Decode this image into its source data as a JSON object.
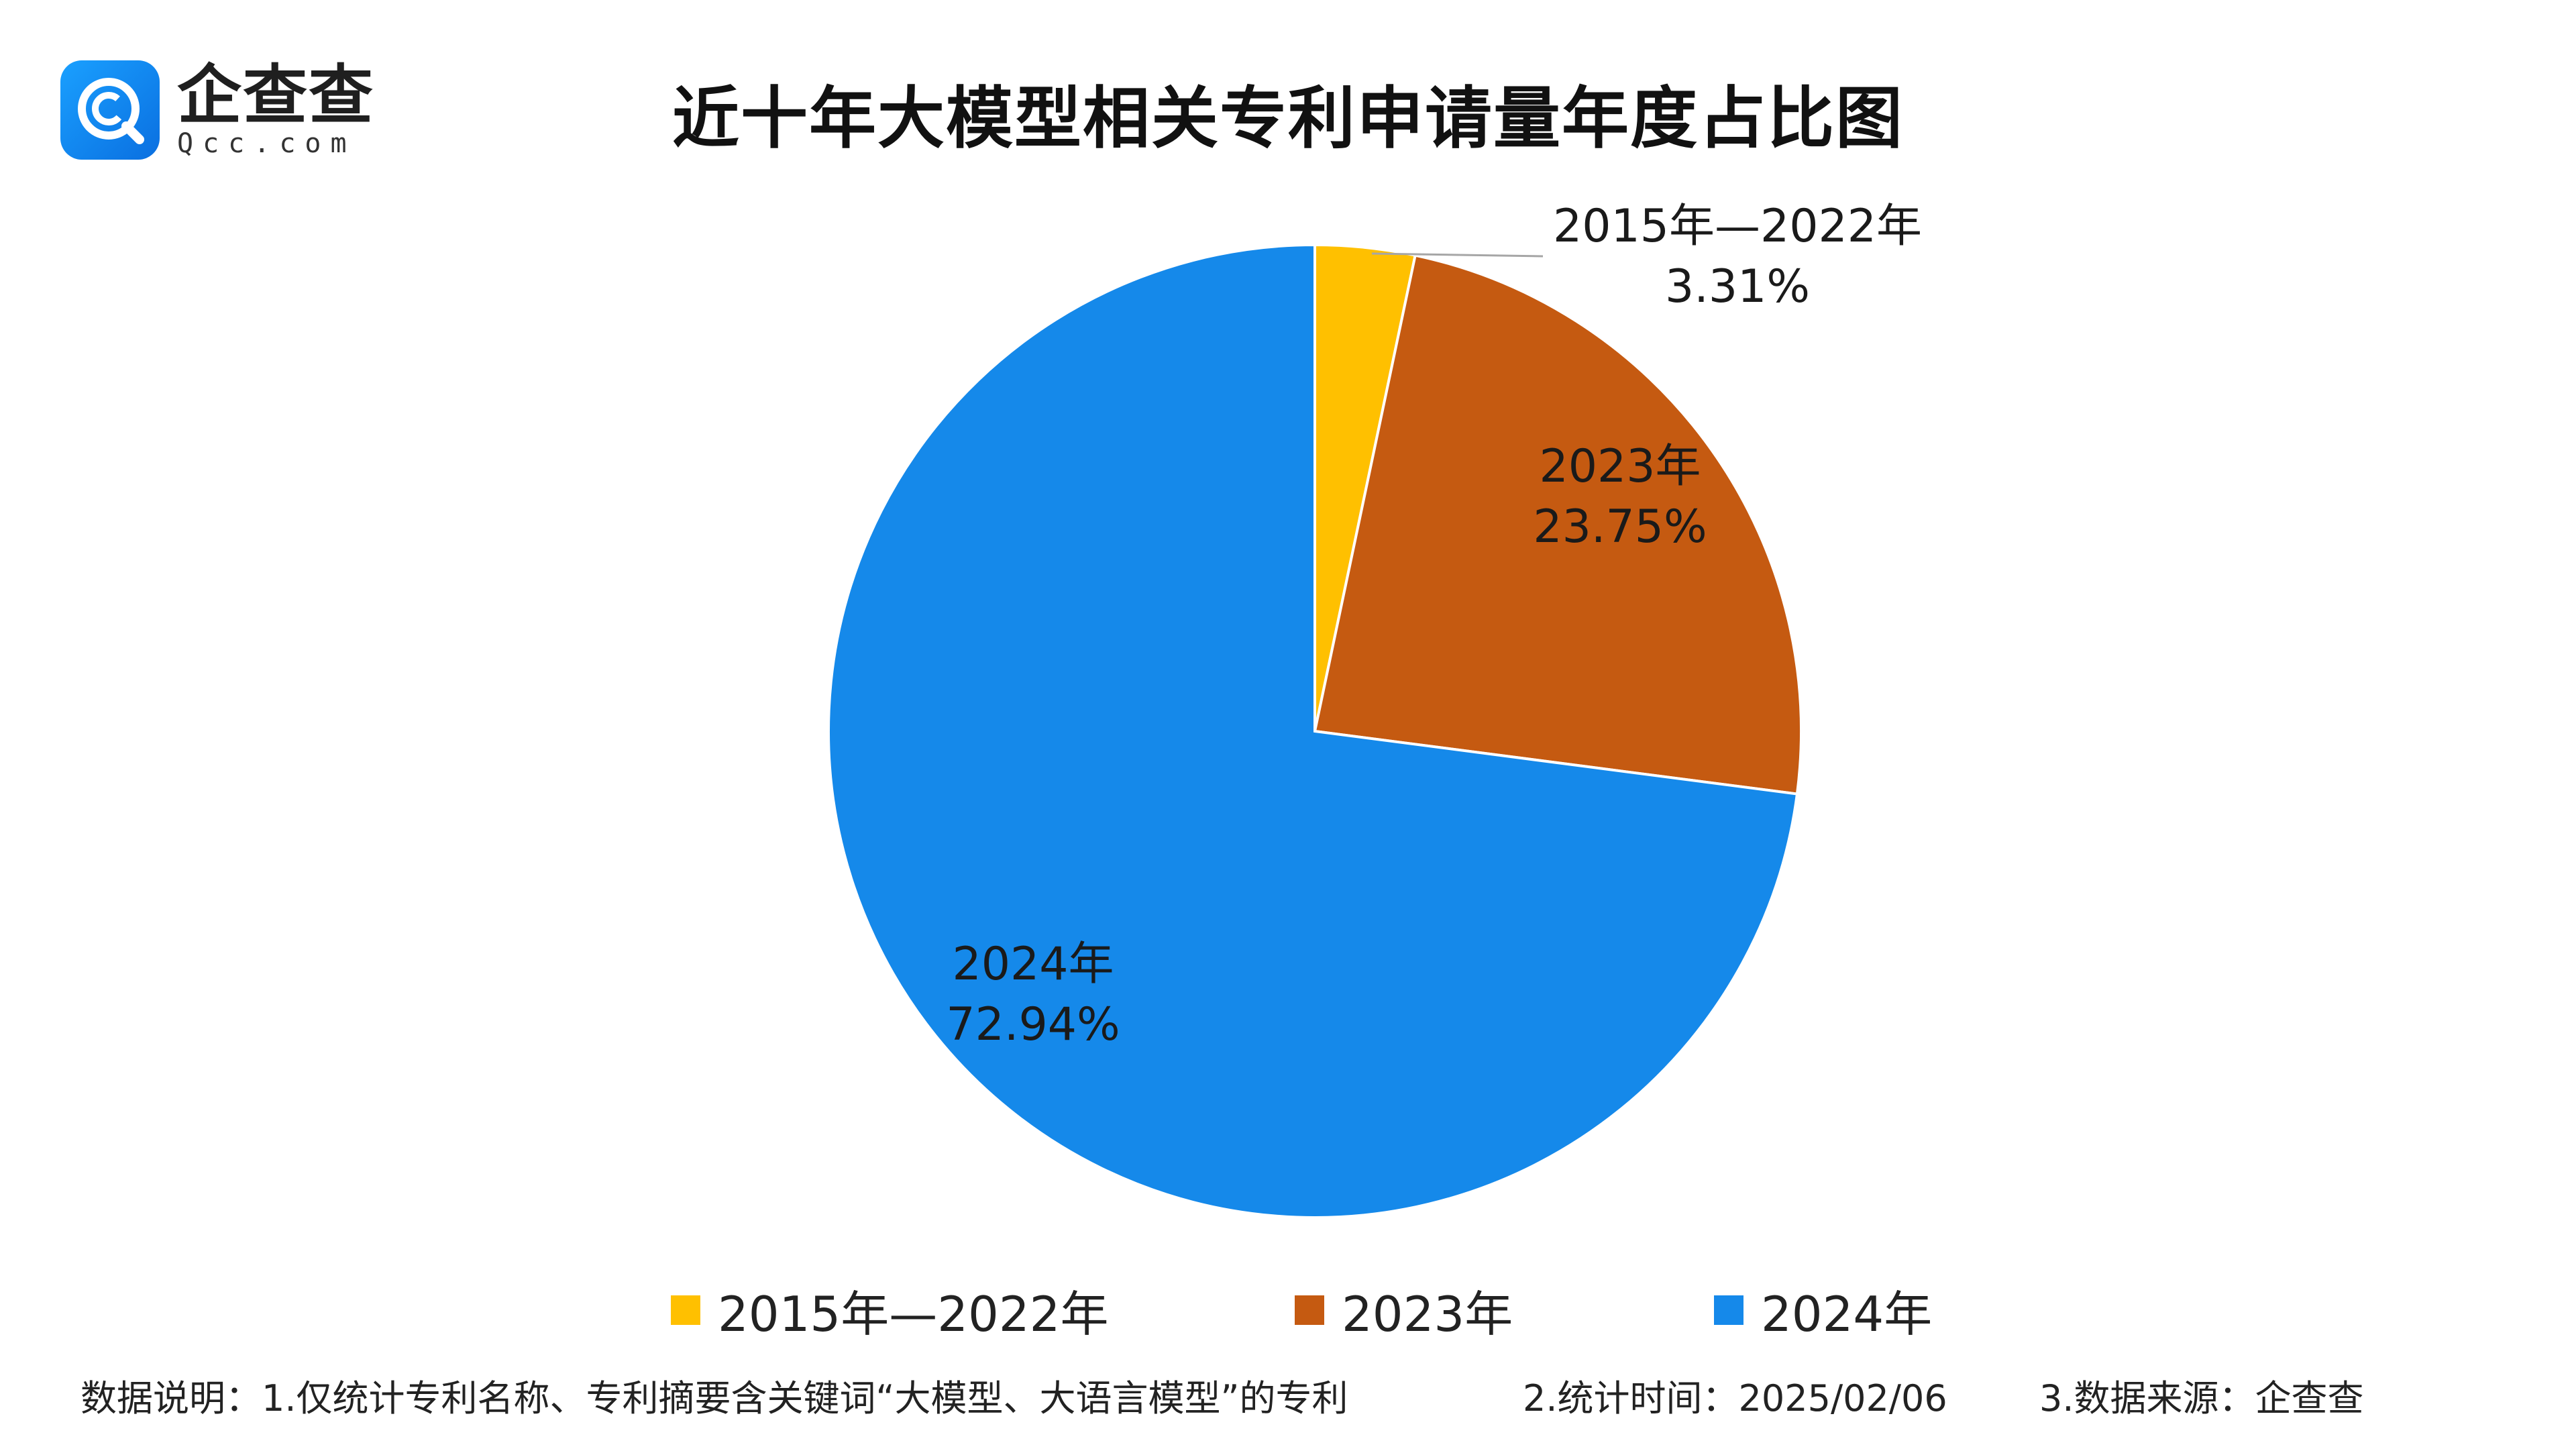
{
  "header": {
    "logo_name": "企查查",
    "logo_domain": "Qcc.com",
    "title": "近十年大模型相关专利申请量年度占比图"
  },
  "chart_data": {
    "type": "pie",
    "title": "近十年大模型相关专利申请量年度占比图",
    "start_angle": "12 o'clock, clockwise",
    "slices": [
      {
        "label": "2015年—2022年",
        "value": 3.31,
        "display": "3.31%",
        "color": "#FFC000"
      },
      {
        "label": "2023年",
        "value": 23.75,
        "display": "23.75%",
        "color": "#C55A11"
      },
      {
        "label": "2024年",
        "value": 72.94,
        "display": "72.94%",
        "color": "#1589EA"
      }
    ],
    "legend_position": "bottom"
  },
  "footer": {
    "note_1": "数据说明：1.仅统计专利名称、专利摘要含关键词“大模型、大语言模型”的专利",
    "note_2": "2.统计时间：2025/02/06",
    "note_3": "3.数据来源：企查查"
  }
}
